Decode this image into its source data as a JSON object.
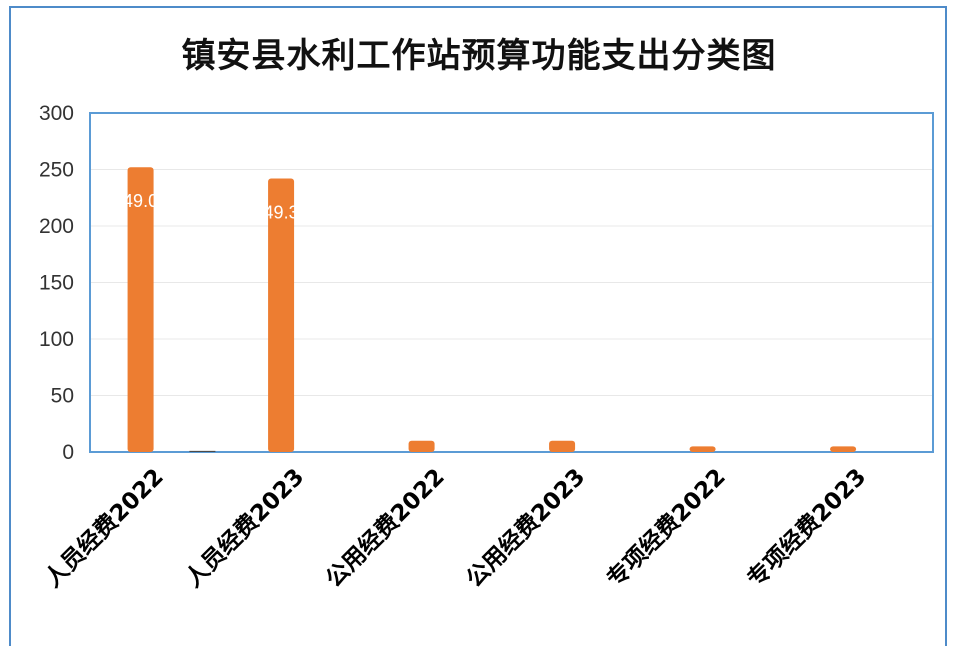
{
  "chart_data": {
    "type": "bar",
    "title": "镇安县水利工作站预算功能支出分类图",
    "categories": [
      "人员经费2022",
      "人员经费2023",
      "公用经费2022",
      "公用经费2023",
      "专项经费2022",
      "专项经费2023"
    ],
    "series": [
      {
        "values": [
          252,
          242,
          10,
          10,
          5,
          5
        ],
        "color": "#ed7d31"
      },
      {
        "values": [
          1,
          0,
          0,
          0,
          0,
          0
        ],
        "color": "#4a4a4a"
      }
    ],
    "data_labels": [
      "49.0",
      "49.3"
    ],
    "ylim": [
      0,
      300
    ],
    "yticks": [
      0,
      50,
      100,
      150,
      200,
      250,
      300
    ],
    "grid": true,
    "legend": "none"
  }
}
